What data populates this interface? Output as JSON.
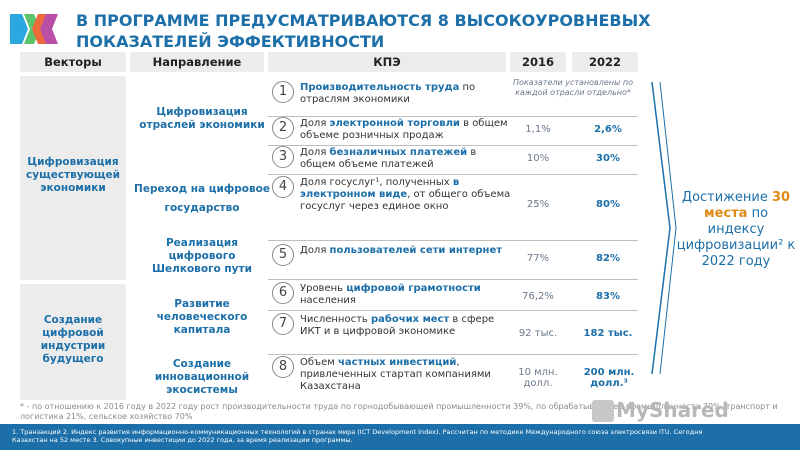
{
  "title": "В ПРОГРАММЕ ПРЕДУСМАТРИВАЮТСЯ 8 ВЫСОКОУРОВНЕВЫХ ПОКАЗАТЕЛЕЙ ЭФФЕКТИВНОСТИ",
  "headers": {
    "vectors": "Векторы",
    "direction": "Направление",
    "kpi": "КПЭ",
    "y2016": "2016",
    "y2022": "2022"
  },
  "note_2016": "Показатели установлены по каждой отрасли отдельно*",
  "vectors": [
    "Цифровизация существующей экономики",
    "Создание цифровой индустрии будущего"
  ],
  "directions": [
    "Цифровизация отраслей экономики",
    "Переход на цифровое государство",
    "Реализация цифрового Шелкового пути",
    "Развитие человеческого капитала",
    "Создание инновационной экосистемы"
  ],
  "kpis": [
    {
      "n": "1",
      "pre": "",
      "hl": "Производительность труда",
      "post": " по отраслям экономики",
      "v2016": "",
      "v2022": ""
    },
    {
      "n": "2",
      "pre": "Доля ",
      "hl": "электронной торговли",
      "post": " в общем объеме розничных продаж",
      "v2016": "1,1%",
      "v2022": "2,6%"
    },
    {
      "n": "3",
      "pre": "Доля ",
      "hl": "безналичных платежей",
      "post": " в общем объеме платежей",
      "v2016": "10%",
      "v2022": "30%"
    },
    {
      "n": "4",
      "pre": "Доля госуслуг¹, полученных ",
      "hl": "в электронном виде",
      "post": ", от общего объема госуслуг через единое окно",
      "v2016": "25%",
      "v2022": "80%"
    },
    {
      "n": "5",
      "pre": "Доля ",
      "hl": "пользователей сети интернет",
      "post": "",
      "v2016": "77%",
      "v2022": "82%"
    },
    {
      "n": "6",
      "pre": "Уровень ",
      "hl": "цифровой грамотности",
      "post": " населения",
      "v2016": "76,2%",
      "v2022": "83%"
    },
    {
      "n": "7",
      "pre": "Численность ",
      "hl": "рабочих мест",
      "post": " в сфере ИКТ и в цифровой экономике",
      "v2016": "92 тыс.",
      "v2022": "182 тыс."
    },
    {
      "n": "8",
      "pre": "Объем ",
      "hl": "частных инвестиций",
      "post": ", привлеченных стартап компаниями Казахстана",
      "v2016": "10 млн. долл.",
      "v2022": "200 млн. долл.³"
    }
  ],
  "achievement": {
    "pre": "Достижение ",
    "hl": "30 места",
    "post": " по индексу цифровизации² к 2022 году"
  },
  "footnote": "* - по отношению к 2016 году в 2022 году рост производительности труда по горнодобывающей промышленности 39%, по обрабатывающей промышленности 30%, транспорт и логистика 21%, сельское хозяйство 70%",
  "footer": "1. Транзакций   2. Индекс развития информационно-коммуникационных технологий в странах мира (ICT Development Index). Рассчитан по методике Международного союза электросвязи ITU. Сегодня Казахстан на 52 месте   3. Совокупные инвестиции до 2022 года, за время реализации программы.",
  "watermark": "MyShared",
  "colors": {
    "accent": "#1c6fa8",
    "highlight": "#e08a16",
    "footer_bg": "#1c6fa8"
  }
}
